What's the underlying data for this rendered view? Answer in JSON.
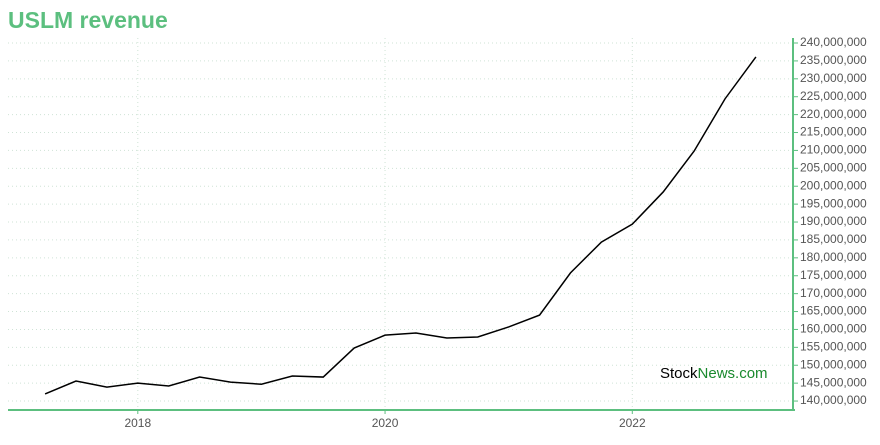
{
  "chart_data": {
    "type": "line",
    "title": "USLM revenue",
    "x": [
      2017.25,
      2017.5,
      2017.75,
      2018.0,
      2018.25,
      2018.5,
      2018.75,
      2019.0,
      2019.25,
      2019.5,
      2019.75,
      2020.0,
      2020.25,
      2020.5,
      2020.75,
      2021.0,
      2021.25,
      2021.5,
      2021.75,
      2022.0,
      2022.25,
      2022.5,
      2022.75,
      2023.0
    ],
    "values": [
      142000000,
      145600000,
      143900000,
      145000000,
      144200000,
      146700000,
      145300000,
      144700000,
      147000000,
      146700000,
      154800000,
      158400000,
      159000000,
      157600000,
      157900000,
      160700000,
      164000000,
      175800000,
      184400000,
      189400000,
      198400000,
      209800000,
      224400000,
      236100000
    ],
    "color": "#000000",
    "xlim": [
      2016.95,
      2023.3
    ],
    "xticks": [
      2018,
      2020,
      2022
    ],
    "ylim": [
      137500000,
      241400000
    ],
    "yticks": [
      {
        "value": 140000000,
        "label": "140,000,000"
      },
      {
        "value": 145000000,
        "label": "145,000,000"
      },
      {
        "value": 150000000,
        "label": "150,000,000"
      },
      {
        "value": 155000000,
        "label": "155,000,000"
      },
      {
        "value": 160000000,
        "label": "160,000,000"
      },
      {
        "value": 165000000,
        "label": "165,000,000"
      },
      {
        "value": 170000000,
        "label": "170,000,000"
      },
      {
        "value": 175000000,
        "label": "175,000,000"
      },
      {
        "value": 180000000,
        "label": "180,000,000"
      },
      {
        "value": 185000000,
        "label": "185,000,000"
      },
      {
        "value": 190000000,
        "label": "190,000,000"
      },
      {
        "value": 195000000,
        "label": "195,000,000"
      },
      {
        "value": 200000000,
        "label": "200,000,000"
      },
      {
        "value": 205000000,
        "label": "205,000,000"
      },
      {
        "value": 210000000,
        "label": "210,000,000"
      },
      {
        "value": 215000000,
        "label": "215,000,000"
      },
      {
        "value": 220000000,
        "label": "220,000,000"
      },
      {
        "value": 225000000,
        "label": "225,000,000"
      },
      {
        "value": 230000000,
        "label": "230,000,000"
      },
      {
        "value": 235000000,
        "label": "235,000,000"
      },
      {
        "value": 240000000,
        "label": "240,000,000"
      }
    ],
    "grid": true,
    "axis_color": "#5cbf7f",
    "watermark": {
      "part1": "Stock",
      "part2": "News.com"
    }
  }
}
